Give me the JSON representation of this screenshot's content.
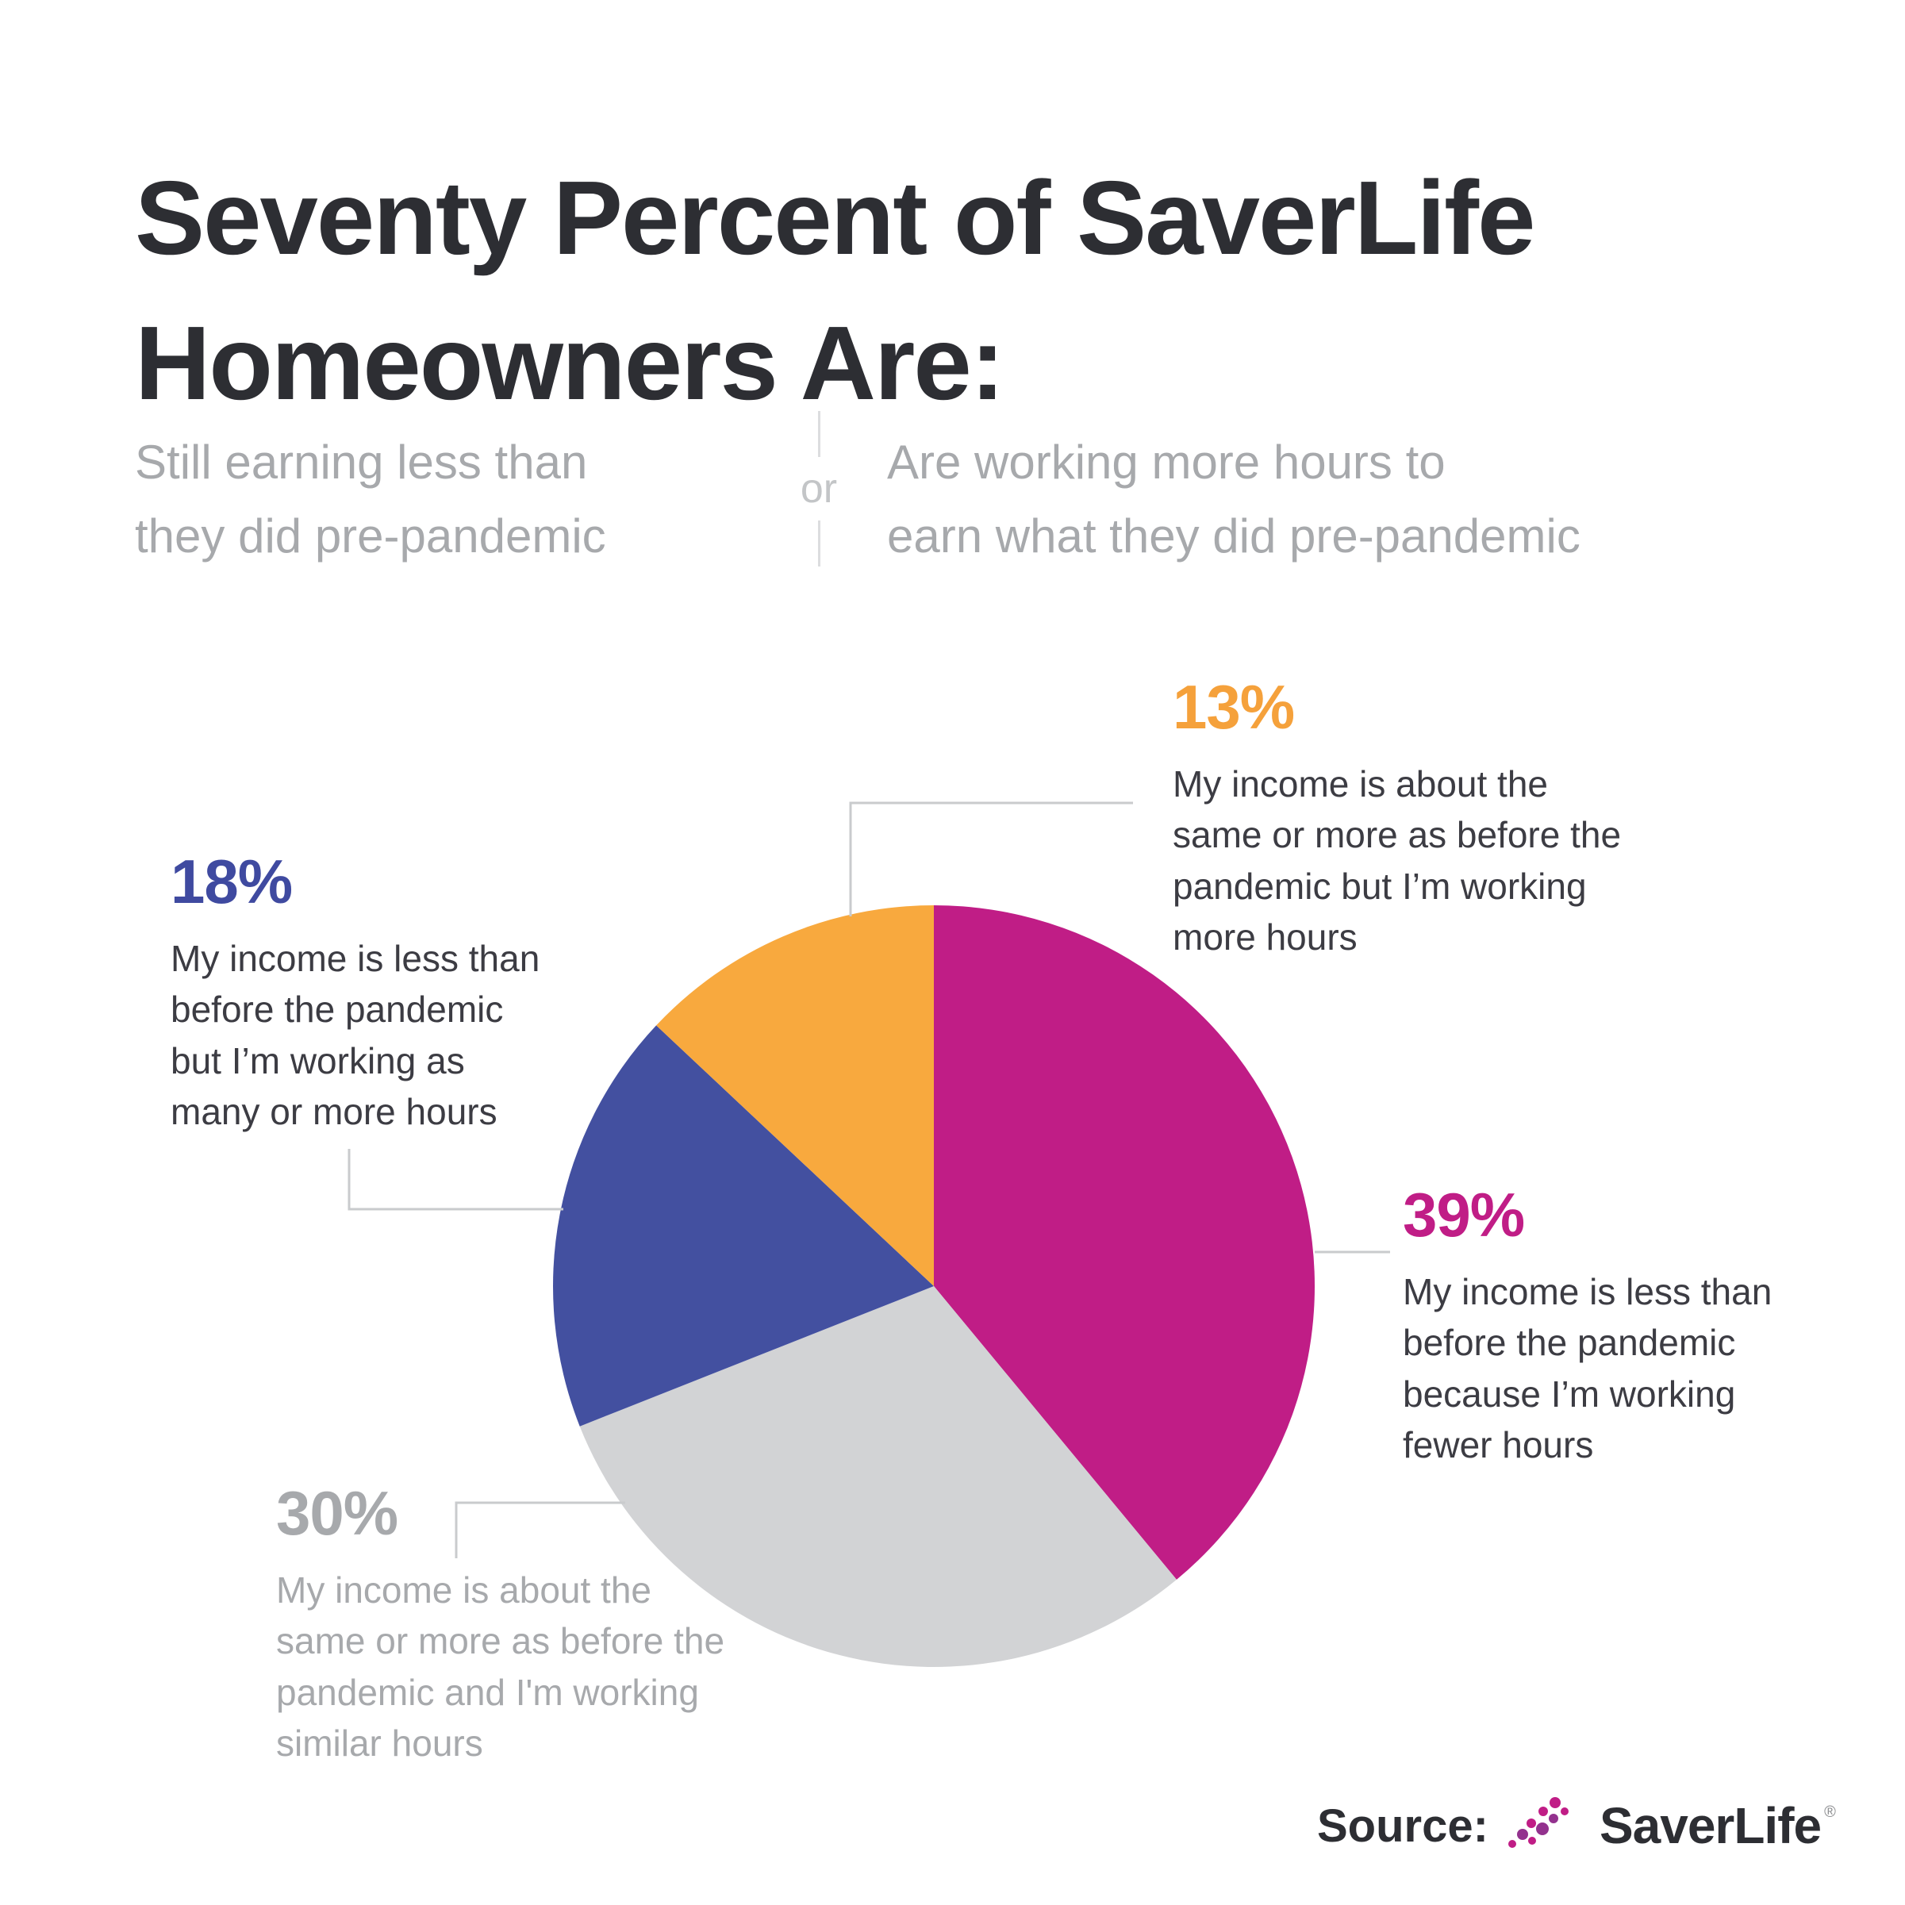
{
  "header": {
    "title_line1": "Seventy Percent of SaverLife",
    "title_line2": "Homeowners Are:",
    "subtitle_left_line1": "Still earning less than",
    "subtitle_left_line2": "they did pre-pandemic",
    "or_label": "or",
    "subtitle_right_line1": "Are working more hours to",
    "subtitle_right_line2": "earn what they did pre-pandemic"
  },
  "chart_data": {
    "type": "pie",
    "title": "Seventy Percent of SaverLife Homeowners Are:",
    "start_angle_deg": 0,
    "direction": "clockwise",
    "legend_position": "callouts",
    "slices": [
      {
        "pct_label": "39%",
        "value": 39,
        "label": "My income is less than before the pandemic because I’m working fewer hours",
        "color": "#c01d86",
        "label_color": "#c01d86"
      },
      {
        "pct_label": "30%",
        "value": 30,
        "label": "My income is about the same or more as before the pandemic and I'm working similar hours",
        "color": "#d2d3d5",
        "label_color": "#a7a9ac"
      },
      {
        "pct_label": "18%",
        "value": 18,
        "label": "My income is less than before the pandemic but I’m working as many or more hours",
        "color": "#4350a0",
        "label_color": "#3f4aa0"
      },
      {
        "pct_label": "13%",
        "value": 13,
        "label": "My income is about the same or more as before the pandemic but I’m working more hours",
        "color": "#f8a93e",
        "label_color": "#f5a13b"
      }
    ]
  },
  "callouts": {
    "c13": {
      "lines": [
        "My income is about the",
        "same or more as before the",
        "pandemic but I’m working",
        "more hours"
      ]
    },
    "c18": {
      "lines": [
        "My income is less than",
        "before the pandemic",
        "but I’m working as",
        "many or more hours"
      ]
    },
    "c39": {
      "lines": [
        "My income is less than",
        "before the pandemic",
        "because I’m working",
        "fewer hours"
      ]
    },
    "c30": {
      "lines": [
        "My income is about the",
        "same or more as before the",
        "pandemic and I'm working",
        "similar hours"
      ]
    }
  },
  "source": {
    "label": "Source:",
    "brand": "SaverLife",
    "registered_mark": "®",
    "icon": "dot-trend-icon",
    "brand_color": "#c01d86",
    "icon_alt_color": "#93328e"
  }
}
